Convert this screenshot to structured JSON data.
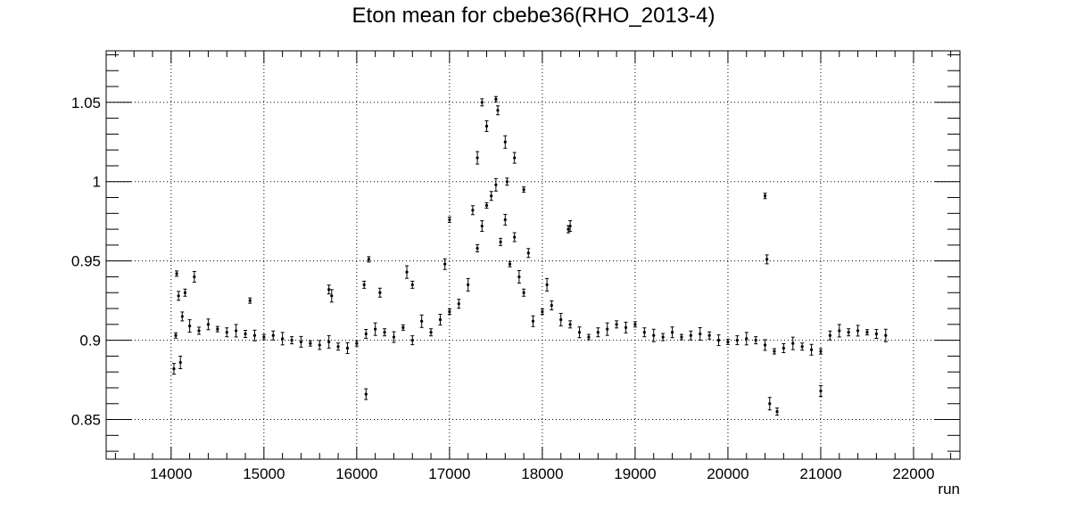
{
  "chart_data": {
    "type": "scatter",
    "title": "Eton mean for cbebe36(RHO_2013-4)",
    "xlabel": "run",
    "ylabel": "",
    "xlim": [
      13300,
      22500
    ],
    "ylim": [
      0.825,
      1.0825
    ],
    "x_ticks": [
      14000,
      15000,
      16000,
      17000,
      18000,
      19000,
      20000,
      21000,
      22000
    ],
    "x_tick_labels": [
      "14000",
      "15000",
      "16000",
      "17000",
      "18000",
      "19000",
      "20000",
      "21000",
      "22000"
    ],
    "y_ticks": [
      0.85,
      0.9,
      0.95,
      1.0,
      1.05
    ],
    "y_tick_labels": [
      "0.85",
      "0.9",
      "0.95",
      "1",
      "1.05"
    ],
    "grid": true,
    "legend": "none",
    "marker_color": "#000000",
    "error_bars": true,
    "series": [
      {
        "x": [
          14050,
          14120,
          14200,
          14300,
          14400,
          14500,
          14600,
          14700,
          14800,
          14900,
          15000,
          15100,
          15200,
          15300,
          15400,
          15500,
          15600,
          15700,
          15800,
          15900,
          16000,
          16100,
          16200,
          16300,
          16400,
          16500,
          16600,
          16700,
          16800,
          16900,
          17000,
          17100,
          17200,
          17300,
          17350,
          17400,
          17450,
          17500,
          17550,
          17600,
          17650,
          17700,
          17750,
          17800,
          17900,
          18000,
          18100,
          18200,
          18300,
          18400,
          18500,
          18600,
          18700,
          18800,
          18900,
          19000,
          19100,
          19200,
          19300,
          19400,
          19500,
          19600,
          19700,
          19800,
          19900,
          20000,
          20100,
          20200,
          20300,
          20400,
          20500,
          20600,
          20700,
          20800,
          20900,
          21000,
          21100,
          21200,
          21300,
          21400,
          21500,
          21600,
          21700
        ],
        "y": [
          0.903,
          0.915,
          0.909,
          0.906,
          0.91,
          0.907,
          0.905,
          0.906,
          0.904,
          0.903,
          0.902,
          0.903,
          0.901,
          0.9,
          0.899,
          0.898,
          0.897,
          0.899,
          0.896,
          0.895,
          0.898,
          0.904,
          0.907,
          0.905,
          0.902,
          0.908,
          0.9,
          0.912,
          0.905,
          0.913,
          0.918,
          0.923,
          0.935,
          0.958,
          0.972,
          0.985,
          0.991,
          0.998,
          0.962,
          0.976,
          0.948,
          0.965,
          0.94,
          0.93,
          0.912,
          0.918,
          0.922,
          0.913,
          0.91,
          0.905,
          0.902,
          0.905,
          0.907,
          0.91,
          0.908,
          0.91,
          0.905,
          0.903,
          0.902,
          0.905,
          0.902,
          0.903,
          0.904,
          0.903,
          0.9,
          0.899,
          0.9,
          0.901,
          0.9,
          0.897,
          0.893,
          0.895,
          0.898,
          0.896,
          0.894,
          0.893,
          0.903,
          0.906,
          0.905,
          0.906,
          0.905,
          0.904,
          0.903
        ]
      },
      {
        "x": [
          14030,
          14060,
          14080,
          14100,
          14150,
          14250,
          14850,
          15700,
          15730,
          16080,
          16100,
          16130,
          16250,
          16540,
          16600,
          16950,
          17000,
          17250,
          17300,
          17350,
          17400,
          17500,
          17520,
          17600,
          17620,
          17700,
          17800,
          17850,
          18050,
          18280,
          18300,
          20400,
          20420,
          20450,
          20530,
          21000
        ],
        "y": [
          0.882,
          0.942,
          0.928,
          0.886,
          0.93,
          0.94,
          0.925,
          0.932,
          0.928,
          0.935,
          0.866,
          0.951,
          0.93,
          0.943,
          0.935,
          0.948,
          0.976,
          0.982,
          1.015,
          1.05,
          1.035,
          1.052,
          1.045,
          1.025,
          1.0,
          1.015,
          0.995,
          0.955,
          0.935,
          0.97,
          0.972,
          0.991,
          0.951,
          0.86,
          0.855,
          0.868
        ]
      }
    ]
  }
}
